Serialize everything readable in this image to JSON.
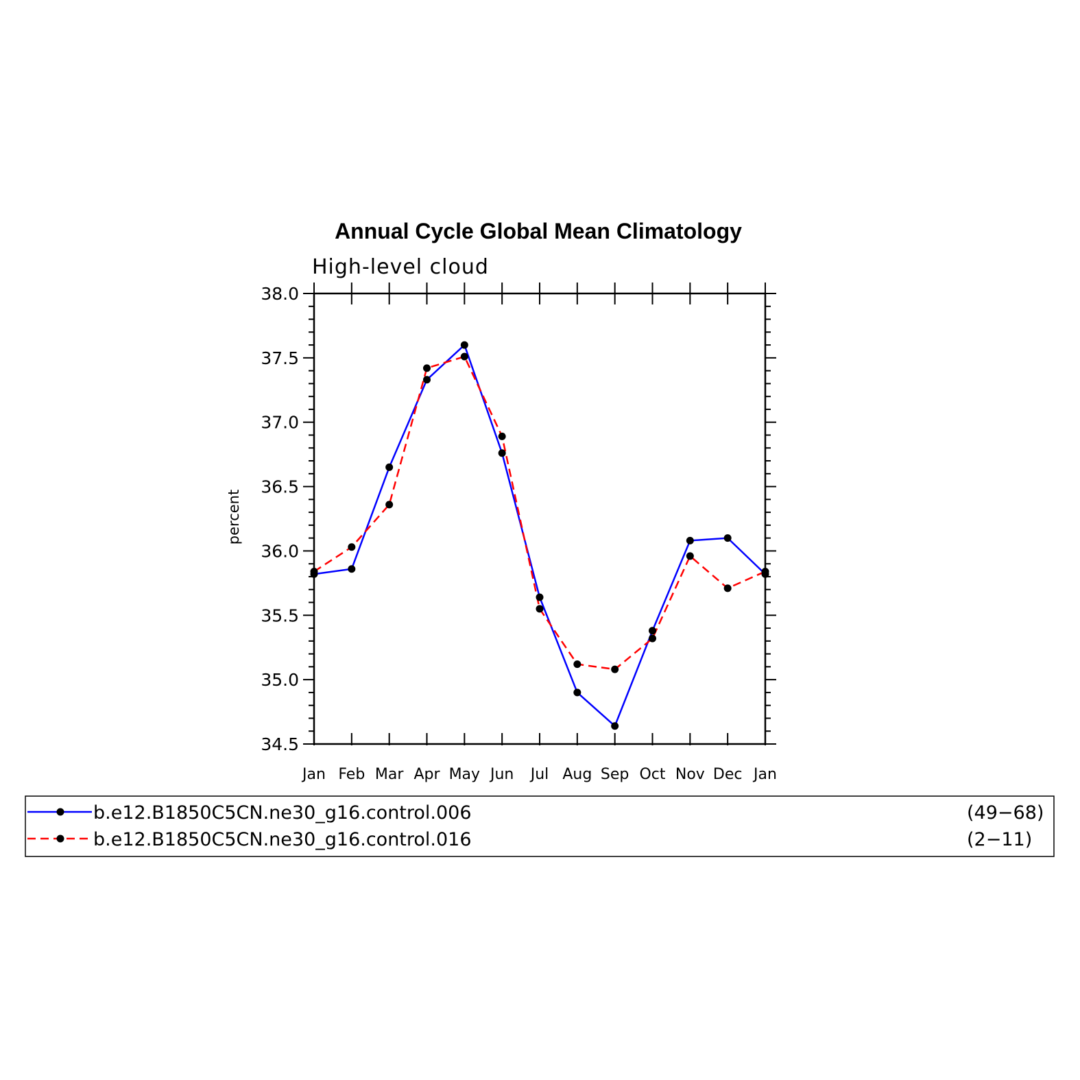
{
  "chart_data": {
    "type": "line",
    "title": "Annual Cycle Global Mean Climatology",
    "subtitle": "High-level cloud",
    "ylabel": "percent",
    "xlabel": "",
    "ylim": [
      34.5,
      38.0
    ],
    "yticks": [
      "34.5",
      "35.0",
      "35.5",
      "36.0",
      "36.5",
      "37.0",
      "37.5",
      "38.0"
    ],
    "categories": [
      "Jan",
      "Feb",
      "Mar",
      "Apr",
      "May",
      "Jun",
      "Jul",
      "Aug",
      "Sep",
      "Oct",
      "Nov",
      "Dec",
      "Jan"
    ],
    "grid": false,
    "legend_position": "bottom",
    "series": [
      {
        "name": "b.e12.B1850C5CN.ne30_g16.control.006",
        "years": "(49−68)",
        "color": "#0000ff",
        "dash": "solid",
        "values": [
          35.82,
          35.86,
          36.65,
          37.33,
          37.6,
          36.76,
          35.64,
          34.9,
          34.64,
          35.38,
          36.08,
          36.1,
          35.82
        ]
      },
      {
        "name": "b.e12.B1850C5CN.ne30_g16.control.016",
        "years": "(2−11)",
        "color": "#ff0000",
        "dash": "dashed",
        "values": [
          35.84,
          36.03,
          36.36,
          37.42,
          37.51,
          36.89,
          35.55,
          35.12,
          35.08,
          35.32,
          35.96,
          35.71,
          35.84
        ]
      }
    ]
  }
}
